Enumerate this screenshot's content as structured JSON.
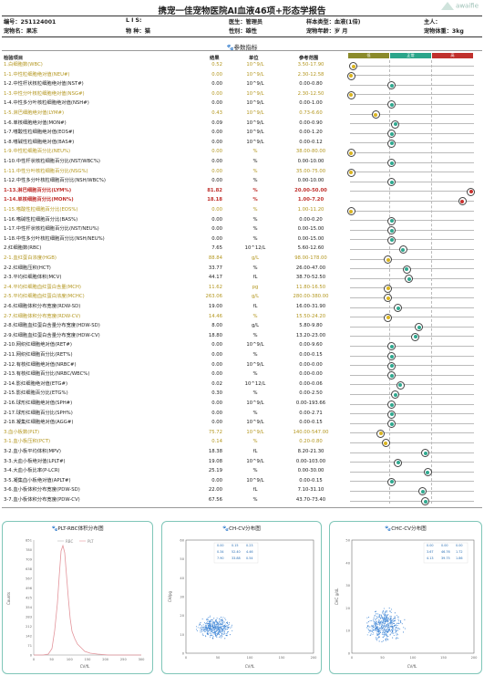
{
  "title": "携宠一佳宠物医院AI血液46项+形态学报告",
  "logo": "awaifie",
  "info": {
    "row1": [
      "编号：251124001",
      "L I S:",
      "医生：管理员",
      "样本类型：血液(1倍)",
      "主人："
    ],
    "row2": [
      "宠物名：果冻",
      "物 种：猫",
      "性别：雄性",
      "宠物年龄：岁 月",
      "宠物体重：3kg"
    ]
  },
  "section_title": "参数指标",
  "headers": {
    "name": "检验项目",
    "result": "结果",
    "unit": "单位",
    "ref": "参考范围"
  },
  "legend": {
    "low": "低",
    "normal": "正常",
    "high": "高"
  },
  "colors": {
    "low": "#8a8a2a",
    "normal": "#2aa58a",
    "high": "#c0302c",
    "highlight": "#b49720",
    "panel_border": "#7fc6b8"
  },
  "rows": [
    {
      "name": "1.白细胞数(WBC)",
      "result": "0.52",
      "unit": "10^9/L",
      "ref": "3.50-17.90",
      "status": "l",
      "level": 0.02,
      "style": "hl"
    },
    {
      "name": "1-1.中性粒细胞绝对值(NEU#)",
      "result": "0.00",
      "unit": "10^9/L",
      "ref": "2.30-12.58",
      "status": "l",
      "level": 0.0,
      "style": "hl"
    },
    {
      "name": "1-2.中性杆状核粒细胞绝对值(NST#)",
      "result": "0.00",
      "unit": "10^9/L",
      "ref": "0.00-0.80",
      "status": "n",
      "level": 0.33,
      "style": ""
    },
    {
      "name": "1-3.中性分叶核粒细胞绝对值(NSG#)",
      "result": "0.00",
      "unit": "10^9/L",
      "ref": "2.30-12.50",
      "status": "l",
      "level": 0.0,
      "style": "hl"
    },
    {
      "name": "1-4.中性多分叶核粒细胞绝对值(NSH#)",
      "result": "0.00",
      "unit": "10^9/L",
      "ref": "0.00-1.00",
      "status": "n",
      "level": 0.33,
      "style": ""
    },
    {
      "name": "1-5.淋巴细胞绝对值(LYM#)",
      "result": "0.43",
      "unit": "10^9/L",
      "ref": "0.73-6.60",
      "status": "l",
      "level": 0.2,
      "style": "hl"
    },
    {
      "name": "1-6.单核细胞绝对值(MON#)",
      "result": "0.09",
      "unit": "10^9/L",
      "ref": "0.00-0.90",
      "status": "n",
      "level": 0.36,
      "style": ""
    },
    {
      "name": "1-7.嗜酸性粒细胞绝对值(EOS#)",
      "result": "0.00",
      "unit": "10^9/L",
      "ref": "0.00-1.20",
      "status": "n",
      "level": 0.33,
      "style": ""
    },
    {
      "name": "1-8.嗜碱性粒细胞绝对值(BAS#)",
      "result": "0.00",
      "unit": "10^9/L",
      "ref": "0.00-0.12",
      "status": "n",
      "level": 0.33,
      "style": ""
    },
    {
      "name": "1-9.中性粒细胞百分比(NEU%)",
      "result": "0.00",
      "unit": "%",
      "ref": "38.00-80.00",
      "status": "l",
      "level": 0.0,
      "style": "hl"
    },
    {
      "name": "1-10.中性杆状核粒细胞百分比(NST/WBC%)",
      "result": "0.00",
      "unit": "%",
      "ref": "0.00-10.00",
      "status": "n",
      "level": 0.33,
      "style": ""
    },
    {
      "name": "1-11.中性分叶核粒细胞百分比(NSG%)",
      "result": "0.00",
      "unit": "%",
      "ref": "35.00-75.00",
      "status": "l",
      "level": 0.0,
      "style": "hl"
    },
    {
      "name": "1-12.中性多分叶核粒细胞百分比(NSH/WBC%)",
      "result": "0.00",
      "unit": "%",
      "ref": "0.00-10.00",
      "status": "n",
      "level": 0.33,
      "style": ""
    },
    {
      "name": "1-13.淋巴细胞百分比(LYM%)",
      "result": "81.82",
      "unit": "%",
      "ref": "20.00-50.00",
      "status": "h",
      "level": 0.97,
      "style": "red"
    },
    {
      "name": "1-14.单核细胞百分比(MON%)",
      "result": "18.18",
      "unit": "%",
      "ref": "1.00-7.20",
      "status": "h",
      "level": 0.9,
      "style": "red"
    },
    {
      "name": "1-15.嗜酸性粒细胞百分比(EOS%)",
      "result": "0.00",
      "unit": "%",
      "ref": "1.00-11.20",
      "status": "l",
      "level": 0.0,
      "style": "hl"
    },
    {
      "name": "1-16.嗜碱性粒细胞百分比(BAS%)",
      "result": "0.00",
      "unit": "%",
      "ref": "0.00-0.20",
      "status": "n",
      "level": 0.33,
      "style": ""
    },
    {
      "name": "1-17.中性杆状核粒细胞百分比(NST/NEU%)",
      "result": "0.00",
      "unit": "%",
      "ref": "0.00-15.00",
      "status": "n",
      "level": 0.33,
      "style": ""
    },
    {
      "name": "1-18.中性多分叶核粒细胞百分比(NSH/NEU%)",
      "result": "0.00",
      "unit": "%",
      "ref": "0.00-15.00",
      "status": "n",
      "level": 0.33,
      "style": ""
    },
    {
      "name": "2.红细胞数(RBC)",
      "result": "7.65",
      "unit": "10^12/L",
      "ref": "5.60-12.60",
      "status": "n",
      "level": 0.42,
      "style": "grp"
    },
    {
      "name": "2-1.血红蛋白浓度(HGB)",
      "result": "88.84",
      "unit": "g/L",
      "ref": "98.00-178.00",
      "status": "l",
      "level": 0.3,
      "style": "hl"
    },
    {
      "name": "2-2.红细胞压积(HCT)",
      "result": "33.77",
      "unit": "%",
      "ref": "26.00-47.00",
      "status": "n",
      "level": 0.45,
      "style": ""
    },
    {
      "name": "2-3.平均红细胞体积(MCV)",
      "result": "44.17",
      "unit": "fL",
      "ref": "38.70-52.50",
      "status": "n",
      "level": 0.47,
      "style": ""
    },
    {
      "name": "2-4.平均红细胞血红蛋白含量(MCH)",
      "result": "11.62",
      "unit": "pg",
      "ref": "11.80-16.50",
      "status": "l",
      "level": 0.3,
      "style": "hl"
    },
    {
      "name": "2-5.平均红细胞血红蛋白浓度(MCHC)",
      "result": "263.06",
      "unit": "g/L",
      "ref": "280.00-380.00",
      "status": "l",
      "level": 0.3,
      "style": "hl"
    },
    {
      "name": "2-6.红细胞体积分布宽度(RDW-SD)",
      "result": "19.00",
      "unit": "fL",
      "ref": "16.00-31.90",
      "status": "n",
      "level": 0.38,
      "style": ""
    },
    {
      "name": "2-7.红细胞体积分布宽度(RDW-CV)",
      "result": "14.46",
      "unit": "%",
      "ref": "15.50-24.20",
      "status": "l",
      "level": 0.3,
      "style": "hl"
    },
    {
      "name": "2-8.红细胞血红蛋白含量分布宽度(HDW-SD)",
      "result": "8.00",
      "unit": "g/L",
      "ref": "5.80-9.80",
      "status": "n",
      "level": 0.55,
      "style": ""
    },
    {
      "name": "2-9.红细胞血红蛋白含量分布宽度(HDW-CV)",
      "result": "18.80",
      "unit": "%",
      "ref": "13.20-23.00",
      "status": "n",
      "level": 0.52,
      "style": ""
    },
    {
      "name": "2-10.网织红细胞绝对值(RET#)",
      "result": "0.00",
      "unit": "10^9/L",
      "ref": "0.00-9.60",
      "status": "n",
      "level": 0.33,
      "style": ""
    },
    {
      "name": "2-11.网织红细胞百分比(RET%)",
      "result": "0.00",
      "unit": "%",
      "ref": "0.00-0.15",
      "status": "n",
      "level": 0.33,
      "style": ""
    },
    {
      "name": "2-12.有核红细胞绝对值(NRBC#)",
      "result": "0.00",
      "unit": "10^9/L",
      "ref": "0.00-0.00",
      "status": "n",
      "level": 0.33,
      "style": ""
    },
    {
      "name": "2-13.有核红细胞百分比(NRBC/WBC%)",
      "result": "0.00",
      "unit": "%",
      "ref": "0.00-0.00",
      "status": "n",
      "level": 0.33,
      "style": ""
    },
    {
      "name": "2-14.影红细胞绝对值(ETG#)",
      "result": "0.02",
      "unit": "10^12/L",
      "ref": "0.00-0.06",
      "status": "n",
      "level": 0.4,
      "style": ""
    },
    {
      "name": "2-15.影红细胞百分比(ETG%)",
      "result": "0.30",
      "unit": "%",
      "ref": "0.00-2.50",
      "status": "n",
      "level": 0.36,
      "style": ""
    },
    {
      "name": "2-16.球形红细胞绝对值(SPH#)",
      "result": "0.00",
      "unit": "10^9/L",
      "ref": "0.00-193.66",
      "status": "n",
      "level": 0.33,
      "style": ""
    },
    {
      "name": "2-17.球形红细胞百分比(SPH%)",
      "result": "0.00",
      "unit": "%",
      "ref": "0.00-2.71",
      "status": "n",
      "level": 0.33,
      "style": ""
    },
    {
      "name": "2-18.凝集红细胞绝对值(AGG#)",
      "result": "0.00",
      "unit": "10^9/L",
      "ref": "0.00-0.15",
      "status": "n",
      "level": 0.33,
      "style": ""
    },
    {
      "name": "3.血小板数(PLT)",
      "result": "75.72",
      "unit": "10^9/L",
      "ref": "140.00-547.00",
      "status": "l",
      "level": 0.24,
      "style": "hl"
    },
    {
      "name": "3-1.血小板压积(PCT)",
      "result": "0.14",
      "unit": "%",
      "ref": "0.20-0.80",
      "status": "l",
      "level": 0.28,
      "style": "hl"
    },
    {
      "name": "3-2.血小板平均体积(MPV)",
      "result": "18.38",
      "unit": "fL",
      "ref": "8.20-21.30",
      "status": "n",
      "level": 0.6,
      "style": ""
    },
    {
      "name": "3-3.大血小板绝对值(LPLT#)",
      "result": "19.08",
      "unit": "10^9/L",
      "ref": "0.00-103.00",
      "status": "n",
      "level": 0.38,
      "style": ""
    },
    {
      "name": "3-4.大血小板比率(P-LCR)",
      "result": "25.19",
      "unit": "%",
      "ref": "0.00-30.00",
      "status": "n",
      "level": 0.62,
      "style": ""
    },
    {
      "name": "3-5.凝集血小板绝对值(APLT#)",
      "result": "0.00",
      "unit": "10^9/L",
      "ref": "0.00-0.15",
      "status": "n",
      "level": 0.33,
      "style": ""
    },
    {
      "name": "3-6.血小板体积分布宽度(PDW-SD)",
      "result": "22.00",
      "unit": "fL",
      "ref": "7.10-31.10",
      "status": "n",
      "level": 0.58,
      "style": ""
    },
    {
      "name": "3-7.血小板体积分布宽度(PDW-CV)",
      "result": "67.56",
      "unit": "%",
      "ref": "43.70-73.40",
      "status": "n",
      "level": 0.6,
      "style": ""
    }
  ],
  "panels": {
    "plt_rbc": {
      "title": "PLT-RBC体积分布图",
      "legend": [
        "RBC",
        "PLT"
      ],
      "xlabel": "CV/fL",
      "ylabel": "Counts",
      "yticks": [
        "851",
        "780",
        "709",
        "638",
        "567",
        "496",
        "425",
        "354",
        "283",
        "212",
        "142",
        "71",
        "0"
      ],
      "xticks": [
        "0",
        "50",
        "100",
        "150",
        "200",
        "250",
        "300"
      ]
    },
    "ch_cv": {
      "title": "CH-CV分布图",
      "xlabel": "CV/fL",
      "ylabel": "CH/pg",
      "yticks": [
        "60",
        "50",
        "40",
        "30",
        "20",
        "10",
        "0"
      ],
      "xticks": [
        "0",
        "50",
        "100",
        "150",
        "200"
      ],
      "table": [
        [
          "0.00",
          "0.15",
          "0.23"
        ],
        [
          "0.34",
          "52.40",
          "4.46"
        ],
        [
          "7.90",
          "33.88",
          "0.54"
        ]
      ]
    },
    "chc_cv": {
      "title": "CHC-CV分布图",
      "xlabel": "CV/fL",
      "ylabel": "CHC g/dL",
      "yticks": [
        "50",
        "40",
        "30",
        "20",
        "10",
        "0"
      ],
      "xticks": [
        "0",
        "50",
        "100",
        "150",
        "200"
      ],
      "table": [
        [
          "0.00",
          "0.00",
          "0.00"
        ],
        [
          "3.67",
          "46.76",
          "1.72"
        ],
        [
          "4.13",
          "39.75",
          "1.86"
        ]
      ]
    }
  }
}
